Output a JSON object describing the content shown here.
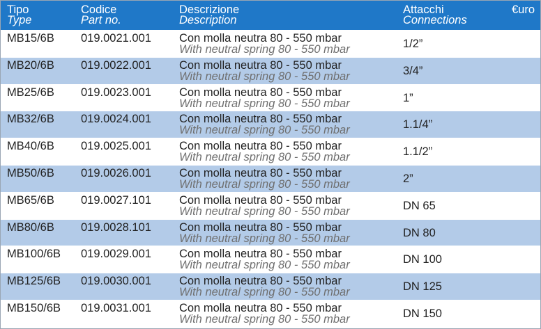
{
  "header": {
    "type_it": "Tipo",
    "type_en": "Type",
    "code_it": "Codice",
    "code_en": "Part no.",
    "desc_it": "Descrizione",
    "desc_en": "Description",
    "conn_it": "Attacchi",
    "conn_en": "Connections",
    "euro": "€uro"
  },
  "colors": {
    "header_bg": "#1f78c8",
    "alt_row_bg": "#b3cbe8"
  },
  "rows": [
    {
      "type": "MB15/6B",
      "code": "019.0021.001",
      "desc_it": "Con molla neutra  80 - 550 mbar",
      "desc_en": "With neutral  spring 80 - 550 mbar",
      "conn": "1/2”"
    },
    {
      "type": "MB20/6B",
      "code": "019.0022.001",
      "desc_it": "Con molla neutra  80 - 550 mbar",
      "desc_en": "With neutral  spring 80 - 550 mbar",
      "conn": "3/4”"
    },
    {
      "type": "MB25/6B",
      "code": "019.0023.001",
      "desc_it": "Con molla neutra  80 - 550 mbar",
      "desc_en": "With neutral  spring 80 - 550 mbar",
      "conn": "1”"
    },
    {
      "type": "MB32/6B",
      "code": "019.0024.001",
      "desc_it": "Con molla neutra  80 - 550 mbar",
      "desc_en": "With neutral  spring 80 - 550 mbar",
      "conn": "1.1/4”"
    },
    {
      "type": "MB40/6B",
      "code": "019.0025.001",
      "desc_it": "Con molla neutra  80 - 550 mbar",
      "desc_en": "With neutral  spring 80 - 550 mbar",
      "conn": "1.1/2”"
    },
    {
      "type": "MB50/6B",
      "code": "019.0026.001",
      "desc_it": "Con molla neutra  80 - 550 mbar",
      "desc_en": "With neutral  spring 80 - 550 mbar",
      "conn": "2”"
    },
    {
      "type": "MB65/6B",
      "code": "019.0027.101",
      "desc_it": "Con molla neutra  80 - 550 mbar",
      "desc_en": "With neutral  spring 80 - 550 mbar",
      "conn": "DN 65"
    },
    {
      "type": "MB80/6B",
      "code": "019.0028.101",
      "desc_it": "Con molla neutra  80 - 550 mbar",
      "desc_en": "With neutral  spring 80 - 550 mbar",
      "conn": "DN 80"
    },
    {
      "type": "MB100/6B",
      "code": "019.0029.001",
      "desc_it": "Con molla neutra  80 - 550 mbar",
      "desc_en": "With neutral  spring 80 - 550 mbar",
      "conn": "DN 100"
    },
    {
      "type": "MB125/6B",
      "code": "019.0030.001",
      "desc_it": "Con molla neutra  80 - 550 mbar",
      "desc_en": "With neutral  spring 80 - 550 mbar",
      "conn": "DN 125"
    },
    {
      "type": "MB150/6B",
      "code": "019.0031.001",
      "desc_it": "Con molla neutra  80 - 550 mbar",
      "desc_en": "With neutral  spring 80 - 550 mbar",
      "conn": "DN 150"
    }
  ]
}
